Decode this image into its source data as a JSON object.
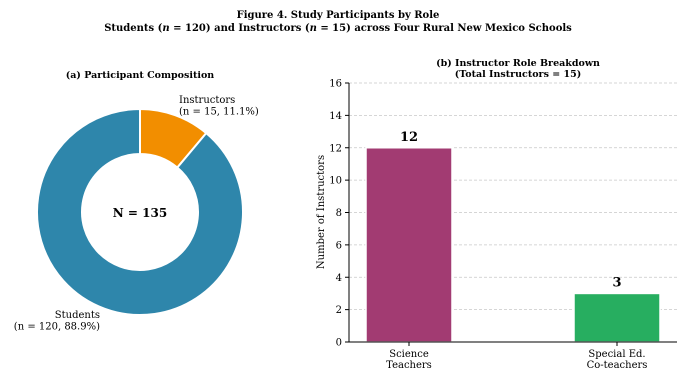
{
  "figure": {
    "title": "Figure 4. Study Participants by Role",
    "subtitle_pre": "Students (",
    "subtitle_n1": "n",
    "subtitle_mid": " = 120) and Instructors (",
    "subtitle_n2": "n",
    "subtitle_post": " = 15) across Four Rural New Mexico Schools"
  },
  "chart_data": [
    {
      "type": "pie",
      "title": "(a) Participant Composition",
      "center_label": "N = 135",
      "slices": [
        {
          "label_line1": "Instructors",
          "label_line2": "(n = 15, 11.1%)",
          "value": 15,
          "percent": 11.1,
          "color": "#f28e00"
        },
        {
          "label_line1": "Students",
          "label_line2": "(n = 120, 88.9%)",
          "value": 120,
          "percent": 88.9,
          "color": "#2e86ab"
        }
      ]
    },
    {
      "type": "bar",
      "title_line1": "(b) Instructor Role Breakdown",
      "title_line2": "(Total Instructors = 15)",
      "ylabel": "Number of Instructors",
      "ylim": [
        0,
        16
      ],
      "yticks": [
        "0",
        "2",
        "4",
        "6",
        "8",
        "10",
        "12",
        "14",
        "16"
      ],
      "grid": true,
      "categories": [
        {
          "line1": "Science",
          "line2": "Teachers"
        },
        {
          "line1": "Special Ed.",
          "line2": "Co-teachers"
        }
      ],
      "values": [
        12,
        3
      ],
      "value_labels": [
        "12",
        "3"
      ],
      "colors": [
        "#a23b72",
        "#27ae60"
      ]
    }
  ]
}
